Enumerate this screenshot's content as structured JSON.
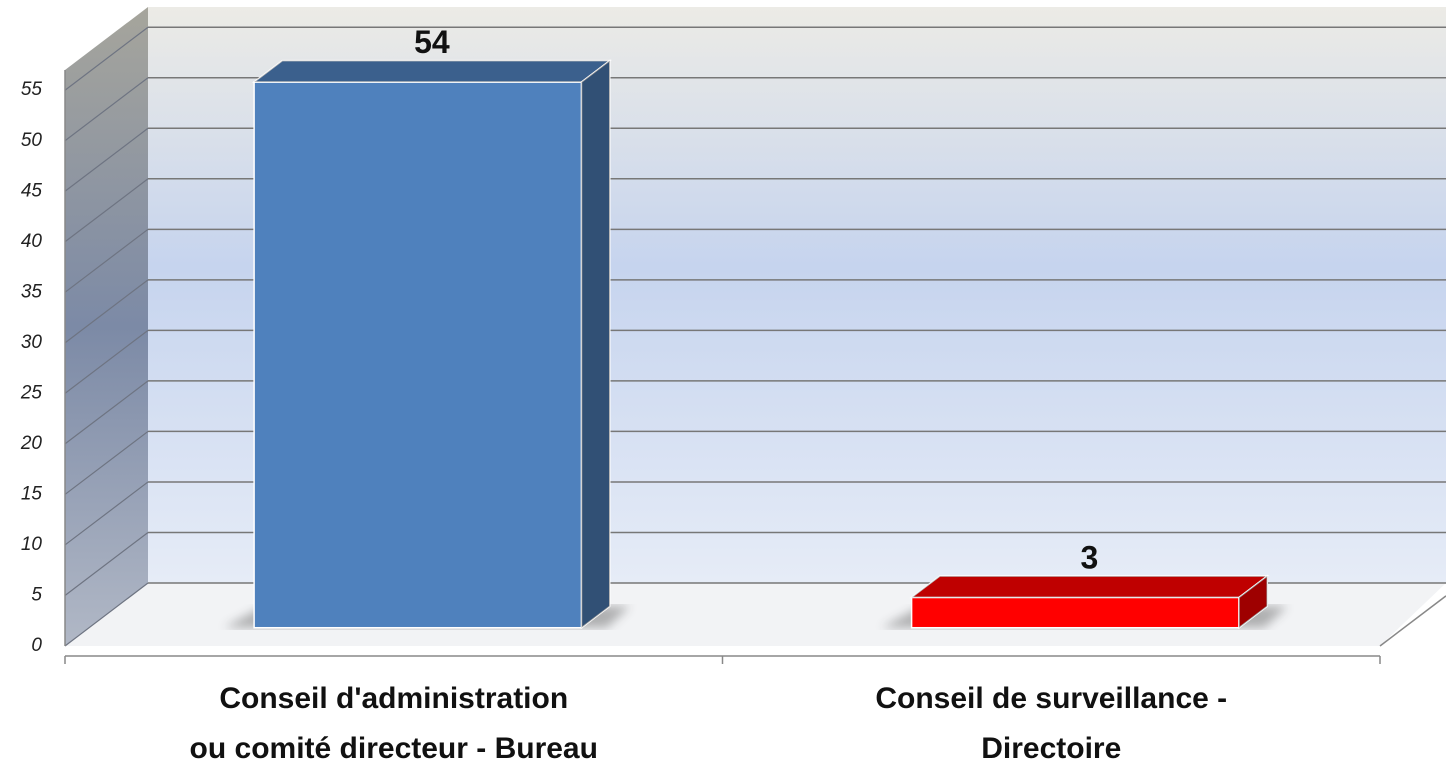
{
  "chart_data": {
    "type": "bar3d",
    "categories": [
      [
        "Conseil d'administration",
        "ou comité directeur - Bureau"
      ],
      [
        "Conseil de surveillance -",
        "Directoire"
      ]
    ],
    "values": [
      54,
      3
    ],
    "colors": [
      "#4f81bd",
      "#ff0000"
    ],
    "ylim": [
      0,
      57
    ],
    "yticks": [
      0,
      5,
      10,
      15,
      20,
      25,
      30,
      35,
      40,
      45,
      50,
      55
    ],
    "grid": true
  }
}
